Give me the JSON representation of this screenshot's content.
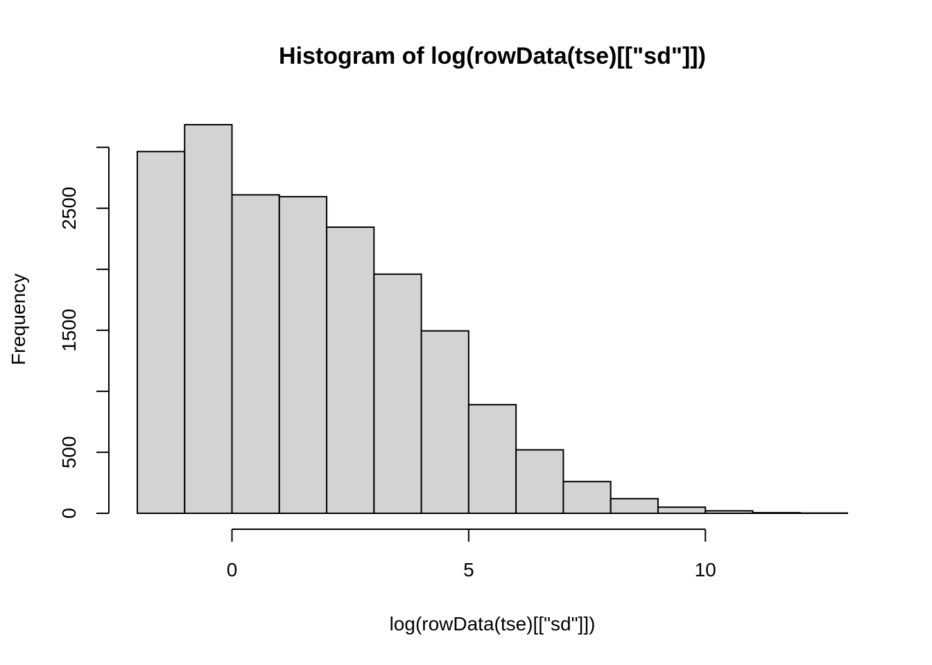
{
  "chart_data": {
    "type": "bar",
    "title": "Histogram of log(rowData(tse)[[\"sd\"]])",
    "xlabel": "log(rowData(tse)[[\"sd\"]])",
    "ylabel": "Frequency",
    "bin_edges": [
      -2,
      -1,
      0,
      1,
      2,
      3,
      4,
      5,
      6,
      7,
      8,
      9,
      10,
      11,
      12,
      13
    ],
    "values": [
      2965,
      3185,
      2610,
      2595,
      2345,
      1960,
      1495,
      890,
      520,
      260,
      120,
      50,
      20,
      5,
      2
    ],
    "xlim": [
      -2,
      13
    ],
    "ylim": [
      0,
      3185
    ],
    "x_ticks": [
      0,
      5,
      10
    ],
    "x_tick_labels": [
      "0",
      "5",
      "10"
    ],
    "y_ticks": [
      0,
      500,
      1000,
      1500,
      2000,
      2500,
      3000
    ],
    "y_tick_labels": [
      "0",
      "500",
      "",
      "1500",
      "",
      "2500",
      ""
    ],
    "bar_fill": "#d3d3d3",
    "bar_stroke": "#000000",
    "grid": false,
    "legend": "none"
  }
}
